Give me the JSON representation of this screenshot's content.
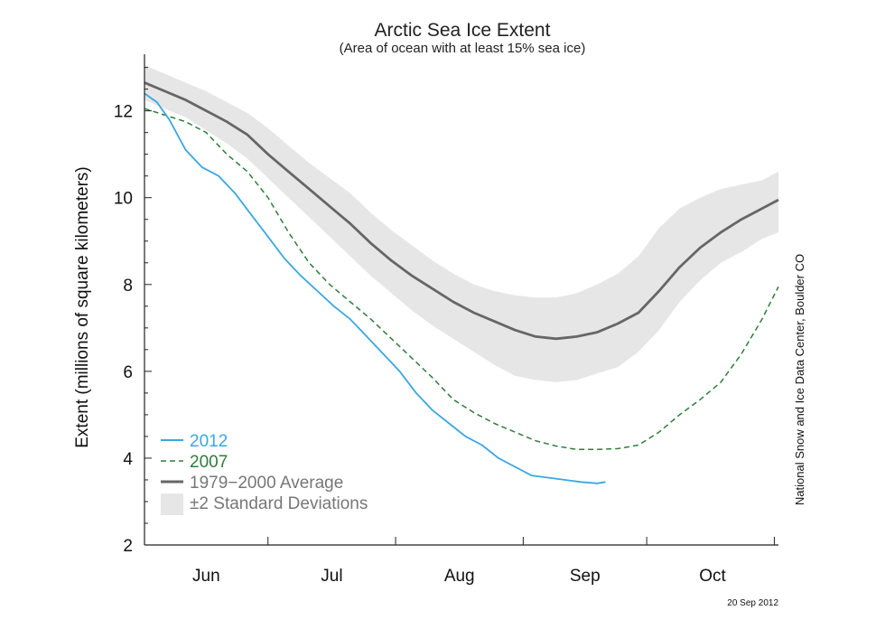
{
  "chart_data": {
    "type": "line",
    "title": "Arctic Sea Ice Extent",
    "subtitle": "(Area of ocean with at least 15% sea ice)",
    "ylabel": "Extent (millions of square kilometers)",
    "xlabel": "",
    "credit": "National Snow and Ice Data Center, Boulder CO",
    "date": "20 Sep 2012",
    "ylim": [
      2,
      13.2
    ],
    "xlim": [
      0,
      154
    ],
    "y_ticks": [
      2,
      4,
      6,
      8,
      10,
      12
    ],
    "x_month_boundaries": [
      0,
      30,
      61,
      92,
      122,
      153
    ],
    "month_labels": [
      {
        "label": "Jun",
        "x": 15
      },
      {
        "label": "Jul",
        "x": 45.5
      },
      {
        "label": "Aug",
        "x": 76.5
      },
      {
        "label": "Sep",
        "x": 107
      },
      {
        "label": "Oct",
        "x": 138
      }
    ],
    "legend": [
      {
        "label": "2012",
        "color": "#3aa7e0",
        "style": "solid"
      },
      {
        "label": "2007",
        "color": "#2e7d3a",
        "style": "dashed"
      },
      {
        "label": "1979−2000 Average",
        "color": "#666666",
        "style": "solid"
      },
      {
        "label": "±2 Standard Deviations",
        "color": "#e6e6e6",
        "style": "band"
      }
    ],
    "series": [
      {
        "name": "2012",
        "color": "#3aa7e0",
        "x": [
          0,
          3,
          6,
          10,
          14,
          18,
          22,
          26,
          30,
          34,
          38,
          42,
          46,
          50,
          54,
          58,
          62,
          66,
          70,
          74,
          78,
          82,
          86,
          90,
          94,
          98,
          102,
          106,
          110,
          112
        ],
        "values": [
          12.4,
          12.2,
          11.8,
          11.1,
          10.7,
          10.5,
          10.1,
          9.6,
          9.1,
          8.6,
          8.2,
          7.85,
          7.5,
          7.2,
          6.8,
          6.4,
          6.0,
          5.5,
          5.1,
          4.8,
          4.5,
          4.3,
          4.0,
          3.8,
          3.6,
          3.55,
          3.5,
          3.45,
          3.42,
          3.45
        ]
      },
      {
        "name": "2007",
        "color": "#2e7d3a",
        "x": [
          0,
          5,
          10,
          15,
          20,
          25,
          30,
          35,
          40,
          45,
          50,
          55,
          60,
          65,
          70,
          75,
          80,
          85,
          90,
          95,
          100,
          105,
          110,
          115,
          120,
          125,
          130,
          135,
          140,
          145,
          150,
          154
        ],
        "values": [
          12.05,
          11.9,
          11.75,
          11.5,
          11.0,
          10.6,
          10.0,
          9.2,
          8.5,
          8.0,
          7.6,
          7.2,
          6.75,
          6.3,
          5.85,
          5.35,
          5.05,
          4.8,
          4.6,
          4.4,
          4.28,
          4.2,
          4.2,
          4.22,
          4.3,
          4.6,
          5.0,
          5.35,
          5.75,
          6.4,
          7.2,
          7.95
        ]
      },
      {
        "name": "1979−2000 Average",
        "color": "#666666",
        "x": [
          0,
          5,
          10,
          15,
          20,
          25,
          30,
          35,
          40,
          45,
          50,
          55,
          60,
          65,
          70,
          75,
          80,
          85,
          90,
          95,
          100,
          105,
          110,
          115,
          120,
          125,
          130,
          135,
          140,
          145,
          150,
          154
        ],
        "values": [
          12.65,
          12.45,
          12.25,
          12.0,
          11.75,
          11.45,
          11.0,
          10.6,
          10.2,
          9.8,
          9.4,
          8.95,
          8.55,
          8.2,
          7.9,
          7.6,
          7.35,
          7.15,
          6.95,
          6.8,
          6.75,
          6.8,
          6.9,
          7.1,
          7.35,
          7.85,
          8.4,
          8.85,
          9.2,
          9.5,
          9.75,
          9.95
        ]
      }
    ],
    "band": {
      "name": "±2 Standard Deviations",
      "color": "#e6e6e6",
      "x": [
        0,
        5,
        10,
        15,
        20,
        25,
        30,
        35,
        40,
        45,
        50,
        55,
        60,
        65,
        70,
        75,
        80,
        85,
        90,
        95,
        100,
        105,
        110,
        115,
        120,
        125,
        130,
        135,
        140,
        145,
        150,
        154
      ],
      "upper": [
        13.05,
        12.85,
        12.65,
        12.45,
        12.2,
        11.95,
        11.6,
        11.2,
        10.8,
        10.45,
        10.1,
        9.65,
        9.25,
        8.9,
        8.55,
        8.25,
        8.0,
        7.85,
        7.75,
        7.7,
        7.7,
        7.8,
        8.0,
        8.25,
        8.65,
        9.3,
        9.75,
        10.0,
        10.2,
        10.3,
        10.4,
        10.6
      ],
      "lower": [
        12.25,
        12.05,
        11.85,
        11.55,
        11.25,
        10.9,
        10.45,
        10.0,
        9.55,
        9.1,
        8.65,
        8.2,
        7.8,
        7.4,
        7.05,
        6.75,
        6.45,
        6.15,
        5.9,
        5.8,
        5.75,
        5.8,
        5.95,
        6.1,
        6.45,
        6.95,
        7.6,
        8.1,
        8.5,
        8.75,
        9.05,
        9.2
      ]
    }
  }
}
